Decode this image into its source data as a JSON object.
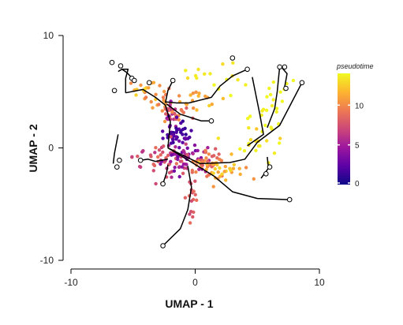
{
  "chart_data": {
    "type": "scatter",
    "xlabel": "UMAP - 1",
    "ylabel": "UMAP - 2",
    "xlim": [
      -10,
      10
    ],
    "ylim": [
      -10,
      10
    ],
    "xticks": [
      -10,
      0,
      10
    ],
    "yticks": [
      -10,
      0,
      10
    ],
    "grid": false,
    "legend": {
      "title": "pseudotime",
      "placement": "right",
      "ticks": [
        0,
        5,
        10
      ],
      "range": [
        0,
        14
      ],
      "colors": [
        "#0d0887",
        "#5c01a6",
        "#9c179e",
        "#cc4778",
        "#ed7953",
        "#fdb42f",
        "#f0f921"
      ]
    },
    "clusters": [
      {
        "cx": -4.4,
        "cy": 4.8,
        "sx": 0.9,
        "sy": 0.6,
        "n": 18,
        "t": [
          10,
          13
        ]
      },
      {
        "cx": -2.7,
        "cy": 4.1,
        "sx": 0.5,
        "sy": 0.6,
        "n": 16,
        "t": [
          9,
          11
        ]
      },
      {
        "cx": -2.0,
        "cy": 3.3,
        "sx": 0.3,
        "sy": 0.7,
        "n": 18,
        "t": [
          4,
          8
        ]
      },
      {
        "cx": -1.6,
        "cy": 3.0,
        "sx": 0.5,
        "sy": 0.4,
        "n": 14,
        "t": [
          7,
          10
        ]
      },
      {
        "cx": -0.5,
        "cy": 4.3,
        "sx": 1.0,
        "sy": 0.5,
        "n": 20,
        "t": [
          10,
          13
        ]
      },
      {
        "cx": 1.8,
        "cy": 6.0,
        "sx": 1.3,
        "sy": 0.6,
        "n": 16,
        "t": [
          13,
          14
        ]
      },
      {
        "cx": -1.5,
        "cy": 1.3,
        "sx": 0.6,
        "sy": 0.6,
        "n": 42,
        "t": [
          1,
          3
        ]
      },
      {
        "cx": -2.3,
        "cy": -1.0,
        "sx": 1.2,
        "sy": 0.8,
        "n": 50,
        "t": [
          6,
          9
        ]
      },
      {
        "cx": -0.8,
        "cy": -0.8,
        "sx": 1.2,
        "sy": 0.8,
        "n": 50,
        "t": [
          3,
          6
        ]
      },
      {
        "cx": 0.9,
        "cy": -1.6,
        "sx": 0.6,
        "sy": 0.7,
        "n": 22,
        "t": [
          8,
          11
        ]
      },
      {
        "cx": 1.0,
        "cy": -1.1,
        "sx": 0.6,
        "sy": 0.4,
        "n": 14,
        "t": [
          8,
          10
        ]
      },
      {
        "cx": 2.2,
        "cy": -1.8,
        "sx": 1.0,
        "sy": 0.5,
        "n": 30,
        "t": [
          10,
          13
        ]
      },
      {
        "cx": -0.4,
        "cy": -4.2,
        "sx": 0.4,
        "sy": 1.3,
        "n": 20,
        "t": [
          7,
          9
        ]
      },
      {
        "cx": 4.3,
        "cy": 0.4,
        "sx": 0.8,
        "sy": 0.8,
        "n": 14,
        "t": [
          12,
          14
        ]
      },
      {
        "cx": 6.0,
        "cy": 2.8,
        "sx": 1.1,
        "sy": 1.0,
        "n": 18,
        "t": [
          13.5,
          14
        ]
      },
      {
        "cx": 6.8,
        "cy": 5.0,
        "sx": 0.6,
        "sy": 0.8,
        "n": 10,
        "t": [
          13.5,
          14
        ]
      }
    ],
    "trajectory": [
      [
        [
          -2.2,
          0.0
        ],
        [
          -2.0,
          2.3
        ],
        [
          -2.4,
          3.8
        ],
        [
          -3.2,
          4.5
        ],
        [
          -4.2,
          5.2
        ],
        [
          -5.6,
          4.9
        ]
      ],
      [
        [
          -2.3,
          3.9
        ],
        [
          -1.2,
          3.0
        ],
        [
          0.5,
          2.4
        ],
        [
          1.3,
          2.4
        ]
      ],
      [
        [
          -2.4,
          4.1
        ],
        [
          -1.5,
          4.0
        ],
        [
          -0.5,
          4.0
        ],
        [
          1.3,
          4.5
        ],
        [
          2.0,
          5.5
        ],
        [
          3.0,
          6.4
        ],
        [
          4.2,
          7.0
        ]
      ],
      [
        [
          -2.4,
          4.0
        ],
        [
          -2.2,
          5.1
        ],
        [
          -1.8,
          6.0
        ]
      ],
      [
        [
          -2.2,
          0.0
        ],
        [
          -0.4,
          -1.2
        ],
        [
          1.5,
          -2.5
        ],
        [
          3.0,
          -3.9
        ],
        [
          5.0,
          -4.5
        ],
        [
          7.6,
          -4.6
        ]
      ],
      [
        [
          -2.2,
          0.0
        ],
        [
          0.4,
          -1.4
        ],
        [
          2.8,
          -1.3
        ],
        [
          4.0,
          -1.0
        ],
        [
          5.0,
          0.5
        ],
        [
          6.8,
          2.0
        ],
        [
          8.6,
          5.8
        ]
      ],
      [
        [
          4.2,
          0.2
        ],
        [
          5.5,
          1.2
        ],
        [
          5.2,
          3.0
        ],
        [
          4.6,
          6.3
        ]
      ],
      [
        [
          5.8,
          1.8
        ],
        [
          6.4,
          3.5
        ],
        [
          6.6,
          5.0
        ],
        [
          6.8,
          7.2
        ]
      ],
      [
        [
          -0.6,
          -1.6
        ],
        [
          -0.3,
          -3.5
        ],
        [
          -0.6,
          -5.5
        ],
        [
          -1.2,
          -7.2
        ],
        [
          -2.6,
          -8.7
        ]
      ],
      [
        [
          -2.2,
          -1.5
        ],
        [
          -2.3,
          -2.2
        ],
        [
          -2.6,
          -3.2
        ]
      ],
      [
        [
          -2.2,
          -1.0
        ],
        [
          -3.2,
          -1.2
        ],
        [
          -3.8,
          -1.0
        ],
        [
          -4.4,
          -1.1
        ]
      ],
      [
        [
          -5.6,
          4.9
        ],
        [
          -5.6,
          6.2
        ],
        [
          -5.4,
          7.0
        ],
        [
          -5.9,
          7.0
        ],
        [
          -6.2,
          6.8
        ]
      ],
      [
        [
          -5.9,
          7.0
        ],
        [
          -5.5,
          6.7
        ],
        [
          -4.9,
          6.0
        ]
      ],
      [
        [
          -6.2,
          1.2
        ],
        [
          -6.5,
          -0.5
        ],
        [
          -6.6,
          -1.4
        ]
      ],
      [
        [
          5.8,
          -0.8
        ],
        [
          5.9,
          -1.8
        ],
        [
          5.3,
          -2.7
        ]
      ],
      [
        [
          7.0,
          7.1
        ],
        [
          7.4,
          6.6
        ],
        [
          7.2,
          5.4
        ]
      ]
    ],
    "endpoints": [
      [
        -5.1,
        6.2
      ],
      [
        -6.5,
        5.1
      ],
      [
        -6.7,
        7.6
      ],
      [
        -6.0,
        7.3
      ],
      [
        -4.9,
        6.0
      ],
      [
        -3.7,
        5.8
      ],
      [
        -1.8,
        6.0
      ],
      [
        1.3,
        2.4
      ],
      [
        4.2,
        7.0
      ],
      [
        3.0,
        8.0
      ],
      [
        6.8,
        7.2
      ],
      [
        7.2,
        7.2
      ],
      [
        7.3,
        5.3
      ],
      [
        8.6,
        5.8
      ],
      [
        7.6,
        -4.6
      ],
      [
        -2.6,
        -8.7
      ],
      [
        -2.6,
        -3.2
      ],
      [
        -4.4,
        -1.1
      ],
      [
        -6.3,
        -1.7
      ],
      [
        -6.1,
        -1.1
      ],
      [
        6.0,
        -1.7
      ],
      [
        5.7,
        -2.3
      ]
    ]
  }
}
